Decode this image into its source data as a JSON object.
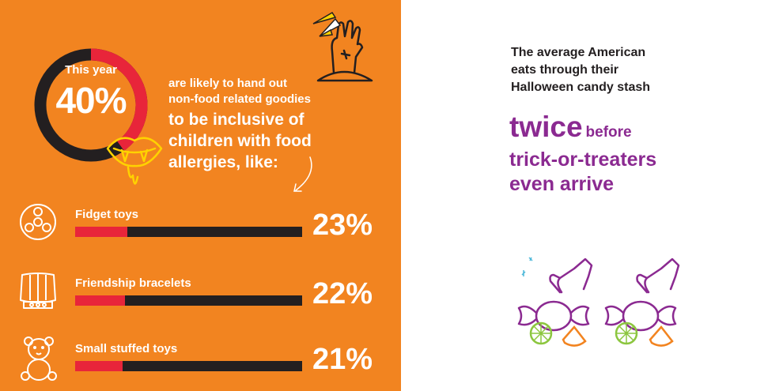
{
  "header": {
    "stat_label": "This year",
    "stat_value": "40%",
    "lead_small": [
      "are likely to hand out",
      "non-food related goodies"
    ],
    "lead_large": [
      "to be inclusive of",
      "children with food",
      "allergies, like:"
    ]
  },
  "colors": {
    "background": "#f28420",
    "accent_red": "#e8253a",
    "dark": "#231f20",
    "purple": "#8b2a91",
    "green": "#8cc63f"
  },
  "chart_data": {
    "type": "bar",
    "categories": [
      "Fidget toys",
      "Friendship bracelets",
      "Small stuffed toys"
    ],
    "values": [
      23,
      22,
      21
    ],
    "value_labels": [
      "23%",
      "22%",
      "21%"
    ],
    "xlim": [
      0,
      100
    ],
    "donut": {
      "value": 40,
      "label": "40%"
    },
    "icons": [
      "fidget-spinner-icon",
      "bracelet-icon",
      "teddy-bear-icon"
    ]
  },
  "right": {
    "title_lines": [
      "The average American",
      "eats through their",
      "Halloween candy stash"
    ],
    "twice_big": "twice",
    "twice_small": "before",
    "line2": "trick-or-treaters",
    "line3": "even arrive"
  }
}
